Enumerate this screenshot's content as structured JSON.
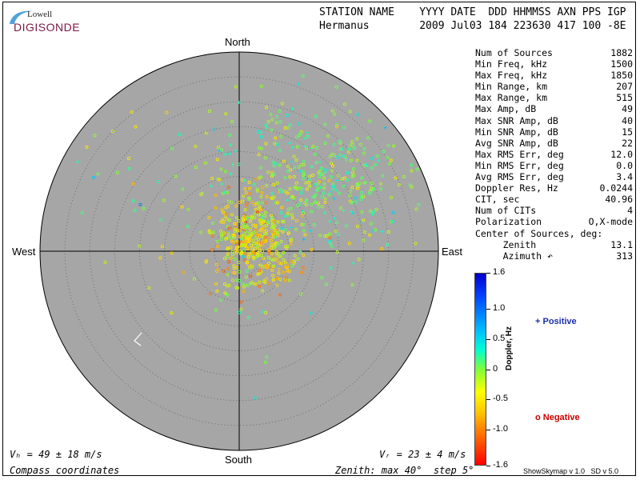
{
  "logo": {
    "top_text": "Lowell",
    "brand_text": "DIGISONDE"
  },
  "header": {
    "line1": "STATION NAME    YYYY DATE  DDD HHMMSS AXN PPS IGP",
    "line2": "Hermanus        2009 Jul03 184 223630 417 100 -8E"
  },
  "compass": {
    "north": "North",
    "south": "South",
    "east": "East",
    "west": "West"
  },
  "stats": [
    {
      "label": "Num of Sources",
      "value": "1882"
    },
    {
      "label": "Min Freq, kHz",
      "value": "1500"
    },
    {
      "label": "Max Freq, kHz",
      "value": "1850"
    },
    {
      "label": "Min Range, km",
      "value": "207"
    },
    {
      "label": "Max Range, km",
      "value": "515"
    },
    {
      "label": "Max Amp, dB",
      "value": "49"
    },
    {
      "label": "Max SNR Amp, dB",
      "value": "40"
    },
    {
      "label": "Min SNR Amp, dB",
      "value": "15"
    },
    {
      "label": "Avg SNR Amp, dB",
      "value": "22"
    },
    {
      "label": "Max RMS Err, deg",
      "value": "12.0"
    },
    {
      "label": "Min RMS Err, deg",
      "value": "0.0"
    },
    {
      "label": "Avg RMS Err, deg",
      "value": "3.4"
    },
    {
      "label": "Doppler Res, Hz",
      "value": "0.0244"
    },
    {
      "label": "CIT, sec",
      "value": "40.96"
    },
    {
      "label": "Num of CITs",
      "value": "4"
    },
    {
      "label": "Polarization",
      "value": "O,X-mode"
    },
    {
      "label": "Center of Sources, deg:",
      "value": ""
    },
    {
      "label": "     Zenith",
      "value": "13.1"
    },
    {
      "label": "     Azimuth ↶",
      "value": "313"
    }
  ],
  "colorbar": {
    "title": "Doppler, Hz",
    "ticks": [
      "1.6",
      "1.0",
      "0.5",
      "0",
      "-0.5",
      "-1.0",
      "-1.6"
    ],
    "tick_values": [
      1.6,
      1.0,
      0.5,
      0,
      -0.5,
      -1.0,
      -1.6
    ],
    "min": -1.6,
    "max": 1.6
  },
  "legend": {
    "positive": "+ Positive",
    "negative": "o Negative"
  },
  "footer": {
    "vh": "Vₕ = 49 ± 18 m/s",
    "vz": "Vᵣ = 23 ± 4 m/s",
    "coords": "Compass coordinates",
    "zenith": "Zenith: max 40°  step 5°",
    "version": "ShowSkymap v 1.0   SD v 5.0"
  },
  "colors": {
    "disk": "#a6a6a6",
    "positive": "#1c2fa8",
    "negative": "#cc0000"
  }
}
